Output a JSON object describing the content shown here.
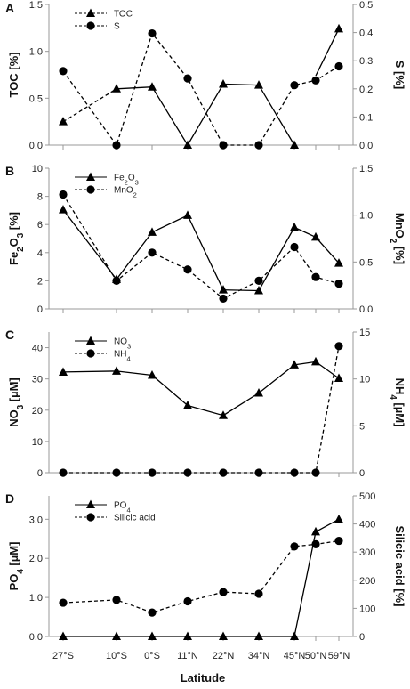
{
  "chart_data": [
    {
      "type": "line",
      "panel_label": "A",
      "categories": [
        "27°S",
        "10°S",
        "0°S",
        "11°N",
        "22°N",
        "34°N",
        "45°N",
        "50°N",
        "59°N"
      ],
      "ylabel": "TOC [%]",
      "y2label": "S [%]",
      "ylim": [
        0,
        1.5
      ],
      "yticks": [
        "0.0",
        "0.5",
        "1.0",
        "1.5"
      ],
      "y2lim": [
        0,
        0.5
      ],
      "y2ticks": [
        "0.0",
        "0.1",
        "0.2",
        "0.3",
        "0.4",
        "0.5"
      ],
      "legend_position": "top-left",
      "series": [
        {
          "name": "TOC",
          "axis": "left",
          "marker": "triangle",
          "segments": [
            {
              "style": "dashed",
              "points": [
                [
                  0,
                  0.25
                ],
                [
                  1,
                  0.6
                ]
              ]
            },
            {
              "style": "solid",
              "points": [
                [
                  1,
                  0.6
                ],
                [
                  2,
                  0.62
                ],
                [
                  3,
                  0.0
                ],
                [
                  4,
                  0.65
                ],
                [
                  5,
                  0.64
                ],
                [
                  6,
                  0.0
                ]
              ]
            },
            {
              "style": "solid",
              "points": [
                [
                  7,
                  0.74
                ],
                [
                  8,
                  1.24
                ]
              ]
            }
          ],
          "values": [
            0.25,
            0.6,
            0.62,
            0.0,
            0.65,
            0.64,
            0.0,
            null,
            1.24
          ]
        },
        {
          "name": "S",
          "axis": "right",
          "marker": "circle",
          "segments": [
            {
              "style": "dashed",
              "points": [
                [
                  0,
                  0.263
                ],
                [
                  1,
                  0.0
                ],
                [
                  2,
                  0.397
                ],
                [
                  3,
                  0.237
                ],
                [
                  4,
                  0.0
                ],
                [
                  5,
                  0.0
                ],
                [
                  6,
                  0.213
                ],
                [
                  7,
                  0.23
                ],
                [
                  8,
                  0.28
                ]
              ]
            }
          ],
          "values": [
            0.263,
            0.0,
            0.397,
            0.237,
            0.0,
            0.0,
            0.213,
            0.23,
            0.28
          ]
        }
      ]
    },
    {
      "type": "line",
      "panel_label": "B",
      "categories": [
        "27°S",
        "10°S",
        "0°S",
        "11°N",
        "22°N",
        "34°N",
        "45°N",
        "50°N",
        "59°N"
      ],
      "ylabel": "Fe2O3 [%]",
      "y2label": "MnO2 [%]",
      "ylim": [
        0,
        10
      ],
      "yticks": [
        "0",
        "2",
        "4",
        "6",
        "8",
        "10"
      ],
      "y2lim": [
        0,
        1.5
      ],
      "y2ticks": [
        "0.0",
        "0.5",
        "1.0",
        "1.5"
      ],
      "legend_position": "top-left",
      "legend_labels": {
        "Fe2O3": [
          "Fe",
          "2",
          "O",
          "3"
        ],
        "MnO2": [
          "MnO",
          "2"
        ]
      },
      "series": [
        {
          "name": "Fe2O3",
          "axis": "left",
          "marker": "triangle",
          "segments": [
            {
              "style": "solid",
              "points": [
                [
                  0,
                  7.05
                ],
                [
                  1,
                  2.1
                ],
                [
                  2,
                  5.45
                ],
                [
                  3,
                  6.65
                ],
                [
                  4,
                  1.35
                ],
                [
                  5,
                  1.3
                ],
                [
                  6,
                  5.8
                ],
                [
                  7,
                  5.1
                ],
                [
                  8,
                  3.25
                ]
              ]
            }
          ],
          "values": [
            7.05,
            2.1,
            5.45,
            6.65,
            1.35,
            1.3,
            5.8,
            5.1,
            3.25
          ]
        },
        {
          "name": "MnO2",
          "axis": "right",
          "marker": "circle",
          "segments": [
            {
              "style": "dashed",
              "points": [
                [
                  0,
                  1.22
                ],
                [
                  1,
                  0.3
                ],
                [
                  2,
                  0.6
                ],
                [
                  3,
                  0.42
                ],
                [
                  4,
                  0.11
                ],
                [
                  5,
                  0.3
                ],
                [
                  6,
                  0.66
                ],
                [
                  7,
                  0.34
                ],
                [
                  8,
                  0.27
                ]
              ]
            }
          ],
          "values": [
            1.22,
            0.3,
            0.6,
            0.42,
            0.11,
            0.3,
            0.66,
            0.34,
            0.27
          ]
        }
      ]
    },
    {
      "type": "line",
      "panel_label": "C",
      "categories": [
        "27°S",
        "10°S",
        "0°S",
        "11°N",
        "22°N",
        "34°N",
        "45°N",
        "50°N",
        "59°N"
      ],
      "ylabel": "NO3 [µM]",
      "y2label": "NH4 [µM]",
      "ylim": [
        0,
        45
      ],
      "yticks": [
        "0",
        "10",
        "20",
        "30",
        "40"
      ],
      "y2lim": [
        0,
        15
      ],
      "y2ticks": [
        "0",
        "5",
        "10",
        "15"
      ],
      "legend_position": "top-left",
      "legend_labels": {
        "NO3": [
          "NO",
          "3"
        ],
        "NH4": [
          "NH",
          "4"
        ]
      },
      "series": [
        {
          "name": "NO3",
          "axis": "left",
          "marker": "triangle",
          "segments": [
            {
              "style": "solid",
              "points": [
                [
                  0,
                  32.2
                ],
                [
                  1,
                  32.5
                ],
                [
                  2,
                  31.2
                ],
                [
                  3,
                  21.5
                ],
                [
                  4,
                  18.3
                ],
                [
                  5,
                  25.5
                ],
                [
                  6,
                  34.5
                ],
                [
                  7,
                  35.5
                ],
                [
                  8,
                  30.2
                ]
              ]
            }
          ],
          "values": [
            32.2,
            32.5,
            31.2,
            21.5,
            18.3,
            25.5,
            34.5,
            35.5,
            30.2
          ]
        },
        {
          "name": "NH4",
          "axis": "right",
          "marker": "circle",
          "segments": [
            {
              "style": "dashed",
              "points": [
                [
                  0,
                  0
                ],
                [
                  1,
                  0
                ],
                [
                  2,
                  0
                ],
                [
                  3,
                  0
                ],
                [
                  4,
                  0
                ],
                [
                  5,
                  0
                ],
                [
                  6,
                  0
                ],
                [
                  7,
                  0
                ],
                [
                  8,
                  13.5
                ]
              ]
            }
          ],
          "values": [
            0,
            0,
            0,
            0,
            0,
            0,
            0,
            0,
            13.5
          ]
        }
      ]
    },
    {
      "type": "line",
      "panel_label": "D",
      "categories": [
        "27°S",
        "10°S",
        "0°S",
        "11°N",
        "22°N",
        "34°N",
        "45°N",
        "50°N",
        "59°N"
      ],
      "ylabel": "PO4 [µM]",
      "y2label": "Silicic acid [%]",
      "ylim": [
        0,
        3.6
      ],
      "yticks": [
        "0.0",
        "1.0",
        "2.0",
        "3.0"
      ],
      "y2lim": [
        0,
        500
      ],
      "y2ticks": [
        "0",
        "100",
        "200",
        "300",
        "400",
        "500"
      ],
      "legend_position": "top-left",
      "legend_labels": {
        "PO4": [
          "PO",
          "4"
        ],
        "Silicic acid": [
          "Silicic acid",
          ""
        ]
      },
      "series": [
        {
          "name": "PO4",
          "axis": "left",
          "marker": "triangle",
          "segments": [
            {
              "style": "solid",
              "points": [
                [
                  0,
                  0.0
                ],
                [
                  1,
                  0.0
                ],
                [
                  2,
                  0.0
                ],
                [
                  3,
                  0.0
                ],
                [
                  4,
                  0.0
                ],
                [
                  5,
                  0.0
                ],
                [
                  6,
                  0.0
                ],
                [
                  7,
                  2.68
                ],
                [
                  8,
                  3.0
                ]
              ]
            }
          ],
          "values": [
            0.0,
            0.0,
            0.0,
            0.0,
            0.0,
            0.0,
            0.0,
            2.68,
            3.0
          ]
        },
        {
          "name": "Silicic acid",
          "axis": "right",
          "marker": "circle",
          "segments": [
            {
              "style": "dashed",
              "points": [
                [
                  0,
                  120
                ],
                [
                  1,
                  130
                ],
                [
                  2,
                  85
                ],
                [
                  3,
                  125
                ],
                [
                  4,
                  158
                ],
                [
                  5,
                  152
                ],
                [
                  6,
                  320
                ],
                [
                  7,
                  328
                ],
                [
                  8,
                  340
                ]
              ]
            }
          ],
          "values": [
            120,
            130,
            85,
            125,
            158,
            152,
            320,
            328,
            340
          ]
        }
      ]
    }
  ],
  "x_axis_label": "Latitude",
  "x_tick_labels": [
    "27°S",
    "10°S",
    "0°S",
    "11°N",
    "22°N",
    "34°N",
    "45°N",
    "50°N",
    "59°N"
  ],
  "x_positions": [
    0,
    3,
    5,
    7,
    9,
    11,
    13,
    14.2,
    15.5
  ],
  "x_range": [
    -0.8,
    16.3
  ]
}
